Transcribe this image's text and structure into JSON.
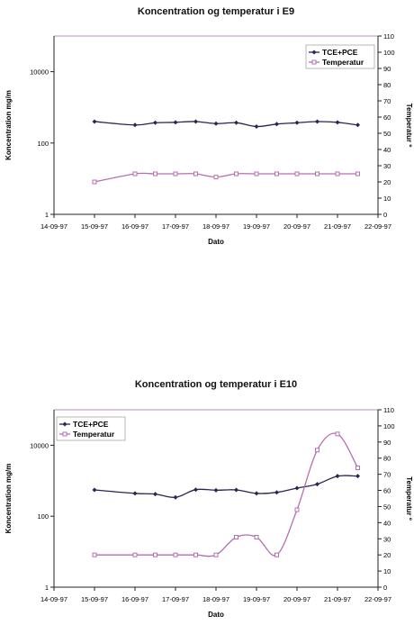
{
  "colors": {
    "tce_pce": "#2b2350",
    "temperatur": "#b46fb0",
    "plot_border": "#c9a0c8",
    "axis": "#222222"
  },
  "chart_data": [
    {
      "type": "line",
      "title": "Koncentration og temperatur i E9",
      "xlabel": "Dato",
      "ylabel": "Koncentration mg/m",
      "y2label": "Temperatur º",
      "yscale": "log",
      "ylim": [
        1,
        100000
      ],
      "y_ticks": [
        "1",
        "100",
        "10000"
      ],
      "y2lim": [
        0,
        110
      ],
      "y2_ticks": [
        "0",
        "10",
        "20",
        "30",
        "40",
        "50",
        "60",
        "70",
        "80",
        "90",
        "100",
        "110"
      ],
      "x_ticks": [
        "14-09-97",
        "15-09-97",
        "16-09-97",
        "17-09-97",
        "18-09-97",
        "19-09-97",
        "20-09-97",
        "21-09-97",
        "22-09-97"
      ],
      "legend_position": "top-right",
      "series": [
        {
          "name": "TCE+PCE",
          "axis": "left",
          "marker": "diamond",
          "x": [
            "1997-09-15",
            "1997-09-16",
            "1997-09-16 12:00",
            "1997-09-17",
            "1997-09-17 12:00",
            "1997-09-18",
            "1997-09-18 12:00",
            "1997-09-19",
            "1997-09-19 12:00",
            "1997-09-20",
            "1997-09-20 12:00",
            "1997-09-21",
            "1997-09-21 12:00"
          ],
          "values": [
            400,
            320,
            370,
            380,
            400,
            350,
            370,
            290,
            340,
            370,
            400,
            380,
            320
          ]
        },
        {
          "name": "Temperatur",
          "axis": "right",
          "marker": "square",
          "x": [
            "1997-09-15",
            "1997-09-16",
            "1997-09-16 12:00",
            "1997-09-17",
            "1997-09-17 12:00",
            "1997-09-18",
            "1997-09-18 12:00",
            "1997-09-19",
            "1997-09-19 12:00",
            "1997-09-20",
            "1997-09-20 12:00",
            "1997-09-21",
            "1997-09-21 12:00"
          ],
          "values": [
            20,
            25,
            25,
            25,
            25,
            23,
            25,
            25,
            25,
            25,
            25,
            25,
            25
          ]
        }
      ]
    },
    {
      "type": "line",
      "title": "Koncentration og temperatur i E10",
      "xlabel": "Dato",
      "ylabel": "Koncentration mg/m",
      "y2label": "Temperatur º",
      "yscale": "log",
      "ylim": [
        1,
        100000
      ],
      "y_ticks": [
        "1",
        "100",
        "10000"
      ],
      "y2lim": [
        0,
        110
      ],
      "y2_ticks": [
        "0",
        "10",
        "20",
        "30",
        "40",
        "50",
        "60",
        "70",
        "80",
        "90",
        "100",
        "110"
      ],
      "x_ticks": [
        "14-09-97",
        "15-09-97",
        "16-09-97",
        "17-09-97",
        "18-09-97",
        "19-09-97",
        "20-09-97",
        "21-09-97",
        "22-09-97"
      ],
      "legend_position": "top-left",
      "series": [
        {
          "name": "TCE+PCE",
          "axis": "left",
          "marker": "diamond",
          "x": [
            "1997-09-15",
            "1997-09-16",
            "1997-09-16 12:00",
            "1997-09-17",
            "1997-09-17 12:00",
            "1997-09-18",
            "1997-09-18 12:00",
            "1997-09-19",
            "1997-09-19 12:00",
            "1997-09-20",
            "1997-09-20 12:00",
            "1997-09-21",
            "1997-09-21 12:00"
          ],
          "values": [
            550,
            440,
            420,
            340,
            560,
            540,
            550,
            440,
            470,
            620,
            800,
            1350,
            1350
          ]
        },
        {
          "name": "Temperatur",
          "axis": "right",
          "marker": "square",
          "x": [
            "1997-09-15",
            "1997-09-16",
            "1997-09-16 12:00",
            "1997-09-17",
            "1997-09-17 12:00",
            "1997-09-18",
            "1997-09-18 12:00",
            "1997-09-19",
            "1997-09-19 12:00",
            "1997-09-20",
            "1997-09-20 12:00",
            "1997-09-21",
            "1997-09-21 12:00"
          ],
          "values": [
            20,
            20,
            20,
            20,
            20,
            20,
            31,
            31,
            20,
            48,
            85,
            95,
            74
          ]
        }
      ]
    }
  ]
}
